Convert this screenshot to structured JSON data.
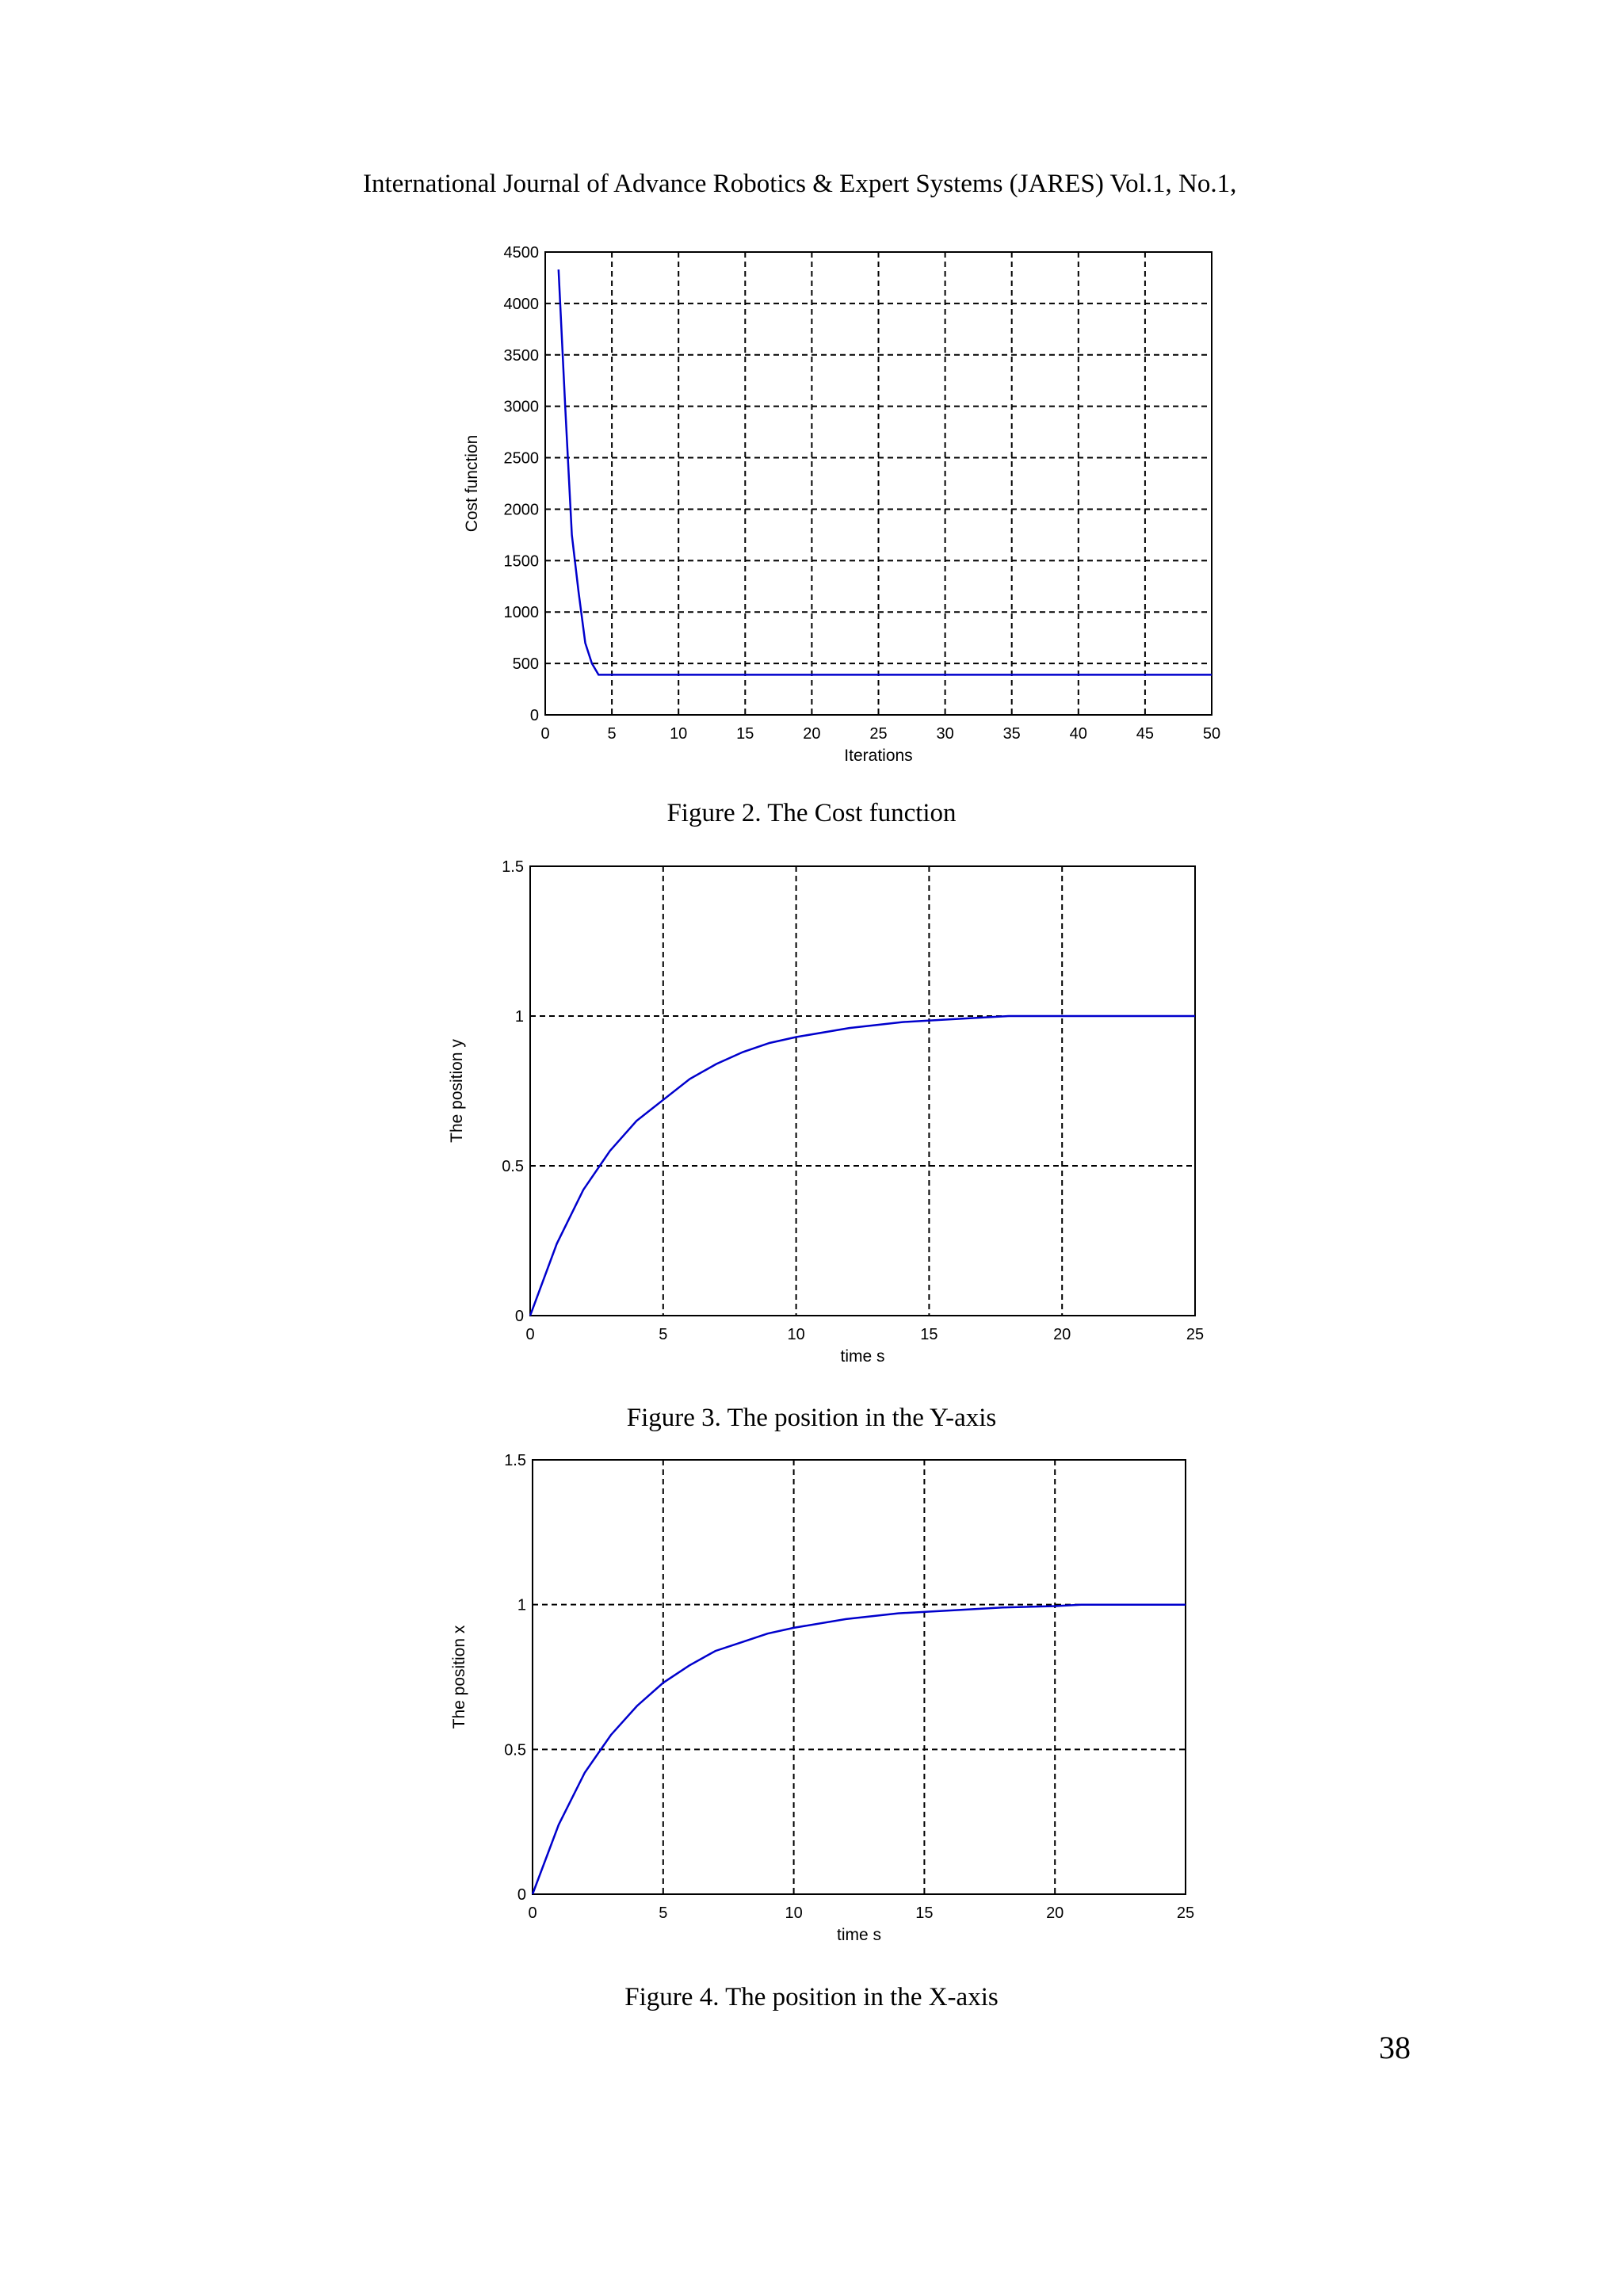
{
  "header": {
    "running_title": "International Journal of Advance Robotics & Expert Systems (JARES) Vol.1, No.1,"
  },
  "page_number": "38",
  "colors": {
    "curve": "#0000cc",
    "grid": "#000000"
  },
  "figures": [
    {
      "id": "fig2",
      "caption": "Figure 2.  The Cost function"
    },
    {
      "id": "fig3",
      "caption": "Figure 3.  The position in the Y-axis"
    },
    {
      "id": "fig4",
      "caption": "Figure 4.  The position in the X-axis"
    }
  ],
  "chart_data": [
    {
      "type": "line",
      "xlabel": "Iterations",
      "ylabel": "Cost function",
      "xlim": [
        0,
        50
      ],
      "ylim": [
        0,
        4500
      ],
      "xticks": [
        "0",
        "5",
        "10",
        "15",
        "20",
        "25",
        "30",
        "35",
        "40",
        "45",
        "50"
      ],
      "yticks": [
        "0",
        "500",
        "1000",
        "1500",
        "2000",
        "2500",
        "3000",
        "3500",
        "4000",
        "4500"
      ],
      "grid": true,
      "series": [
        {
          "x": [
            1,
            1.5,
            2,
            2.5,
            3,
            3.5,
            4,
            50
          ],
          "y": [
            4330,
            3000,
            1750,
            1200,
            700,
            500,
            390,
            390
          ]
        }
      ]
    },
    {
      "type": "line",
      "xlabel": "time s",
      "ylabel": "The position y",
      "xlim": [
        0,
        25
      ],
      "ylim": [
        0,
        1.5
      ],
      "xticks": [
        "0",
        "5",
        "10",
        "15",
        "20",
        "25"
      ],
      "yticks": [
        "0",
        "0.5",
        "1",
        "1.5"
      ],
      "grid": true,
      "series": [
        {
          "x": [
            0,
            1,
            2,
            3,
            4,
            5,
            6,
            7,
            8,
            9,
            10,
            12,
            14,
            16,
            18,
            20,
            25
          ],
          "y": [
            0,
            0.24,
            0.42,
            0.55,
            0.65,
            0.72,
            0.79,
            0.84,
            0.88,
            0.91,
            0.93,
            0.96,
            0.98,
            0.99,
            1.0,
            1.0,
            1.0
          ]
        }
      ]
    },
    {
      "type": "line",
      "xlabel": "time s",
      "ylabel": "The position x",
      "xlim": [
        0,
        25
      ],
      "ylim": [
        0,
        1.5
      ],
      "xticks": [
        "0",
        "5",
        "10",
        "15",
        "20",
        "25"
      ],
      "yticks": [
        "0",
        "0.5",
        "1",
        "1.5"
      ],
      "grid": true,
      "series": [
        {
          "x": [
            0,
            1,
            2,
            3,
            4,
            5,
            6,
            7,
            8,
            9,
            10,
            12,
            14,
            16,
            18,
            20,
            21,
            25
          ],
          "y": [
            0,
            0.24,
            0.42,
            0.55,
            0.65,
            0.73,
            0.79,
            0.84,
            0.87,
            0.9,
            0.92,
            0.95,
            0.97,
            0.98,
            0.99,
            0.995,
            1.0,
            1.0
          ]
        }
      ]
    }
  ]
}
